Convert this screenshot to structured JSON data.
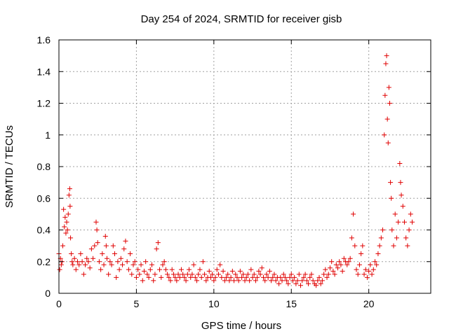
{
  "chart_data": {
    "type": "scatter",
    "title": "Day 254 of 2024, SRMTID for receiver gisb",
    "xlabel": "GPS time / hours",
    "ylabel": "SRMTID / TECUs",
    "xlim": [
      0,
      24
    ],
    "ylim": [
      0,
      1.6
    ],
    "x_ticks": [
      0,
      5,
      10,
      15,
      20
    ],
    "x_tick_labels": [
      "0",
      "5",
      "10",
      "15",
      "20"
    ],
    "y_ticks": [
      0,
      0.2,
      0.4,
      0.6,
      0.8,
      1.0,
      1.2,
      1.4,
      1.6
    ],
    "y_tick_labels": [
      "0",
      "0.2",
      "0.4",
      "0.6",
      "0.8",
      "1",
      "1.2",
      "1.4",
      "1.6"
    ],
    "grid": true,
    "marker": "plus",
    "color": "#e00000",
    "series": [
      {
        "name": "SRMTID",
        "points": [
          [
            0.0,
            0.25
          ],
          [
            0.05,
            0.15
          ],
          [
            0.1,
            0.22
          ],
          [
            0.15,
            0.18
          ],
          [
            0.2,
            0.2
          ],
          [
            0.25,
            0.3
          ],
          [
            0.3,
            0.53
          ],
          [
            0.35,
            0.42
          ],
          [
            0.4,
            0.48
          ],
          [
            0.45,
            0.38
          ],
          [
            0.5,
            0.45
          ],
          [
            0.55,
            0.4
          ],
          [
            0.6,
            0.5
          ],
          [
            0.65,
            0.62
          ],
          [
            0.7,
            0.66
          ],
          [
            0.72,
            0.55
          ],
          [
            0.75,
            0.35
          ],
          [
            0.8,
            0.25
          ],
          [
            0.85,
            0.2
          ],
          [
            0.9,
            0.18
          ],
          [
            1.0,
            0.22
          ],
          [
            1.1,
            0.15
          ],
          [
            1.2,
            0.2
          ],
          [
            1.3,
            0.18
          ],
          [
            1.4,
            0.25
          ],
          [
            1.5,
            0.2
          ],
          [
            1.6,
            0.12
          ],
          [
            1.7,
            0.18
          ],
          [
            1.8,
            0.22
          ],
          [
            1.9,
            0.2
          ],
          [
            2.0,
            0.16
          ],
          [
            2.1,
            0.28
          ],
          [
            2.2,
            0.22
          ],
          [
            2.3,
            0.3
          ],
          [
            2.4,
            0.45
          ],
          [
            2.45,
            0.4
          ],
          [
            2.5,
            0.32
          ],
          [
            2.6,
            0.2
          ],
          [
            2.7,
            0.15
          ],
          [
            2.8,
            0.25
          ],
          [
            2.9,
            0.18
          ],
          [
            3.0,
            0.36
          ],
          [
            3.05,
            0.3
          ],
          [
            3.1,
            0.22
          ],
          [
            3.2,
            0.12
          ],
          [
            3.3,
            0.2
          ],
          [
            3.4,
            0.18
          ],
          [
            3.5,
            0.3
          ],
          [
            3.6,
            0.25
          ],
          [
            3.7,
            0.1
          ],
          [
            3.8,
            0.2
          ],
          [
            3.9,
            0.15
          ],
          [
            4.0,
            0.22
          ],
          [
            4.1,
            0.18
          ],
          [
            4.2,
            0.28
          ],
          [
            4.3,
            0.33
          ],
          [
            4.4,
            0.2
          ],
          [
            4.5,
            0.15
          ],
          [
            4.6,
            0.25
          ],
          [
            4.7,
            0.12
          ],
          [
            4.8,
            0.18
          ],
          [
            4.9,
            0.2
          ],
          [
            5.0,
            0.1
          ],
          [
            5.1,
            0.15
          ],
          [
            5.2,
            0.12
          ],
          [
            5.3,
            0.18
          ],
          [
            5.4,
            0.08
          ],
          [
            5.5,
            0.14
          ],
          [
            5.6,
            0.2
          ],
          [
            5.7,
            0.12
          ],
          [
            5.8,
            0.1
          ],
          [
            5.9,
            0.15
          ],
          [
            6.0,
            0.18
          ],
          [
            6.1,
            0.08
          ],
          [
            6.2,
            0.12
          ],
          [
            6.3,
            0.28
          ],
          [
            6.4,
            0.32
          ],
          [
            6.5,
            0.15
          ],
          [
            6.6,
            0.1
          ],
          [
            6.7,
            0.18
          ],
          [
            6.8,
            0.2
          ],
          [
            6.9,
            0.15
          ],
          [
            7.0,
            0.12
          ],
          [
            7.1,
            0.1
          ],
          [
            7.2,
            0.08
          ],
          [
            7.3,
            0.15
          ],
          [
            7.4,
            0.12
          ],
          [
            7.5,
            0.1
          ],
          [
            7.6,
            0.08
          ],
          [
            7.7,
            0.12
          ],
          [
            7.8,
            0.1
          ],
          [
            7.9,
            0.15
          ],
          [
            8.0,
            0.12
          ],
          [
            8.1,
            0.1
          ],
          [
            8.2,
            0.08
          ],
          [
            8.3,
            0.12
          ],
          [
            8.4,
            0.15
          ],
          [
            8.5,
            0.1
          ],
          [
            8.6,
            0.12
          ],
          [
            8.7,
            0.18
          ],
          [
            8.8,
            0.1
          ],
          [
            8.9,
            0.08
          ],
          [
            9.0,
            0.12
          ],
          [
            9.1,
            0.15
          ],
          [
            9.2,
            0.1
          ],
          [
            9.3,
            0.2
          ],
          [
            9.4,
            0.12
          ],
          [
            9.5,
            0.08
          ],
          [
            9.6,
            0.1
          ],
          [
            9.7,
            0.14
          ],
          [
            9.8,
            0.1
          ],
          [
            9.9,
            0.12
          ],
          [
            10.0,
            0.08
          ],
          [
            10.1,
            0.1
          ],
          [
            10.2,
            0.15
          ],
          [
            10.3,
            0.12
          ],
          [
            10.4,
            0.18
          ],
          [
            10.5,
            0.1
          ],
          [
            10.6,
            0.14
          ],
          [
            10.7,
            0.08
          ],
          [
            10.8,
            0.1
          ],
          [
            10.9,
            0.12
          ],
          [
            11.0,
            0.08
          ],
          [
            11.1,
            0.1
          ],
          [
            11.2,
            0.14
          ],
          [
            11.3,
            0.08
          ],
          [
            11.4,
            0.12
          ],
          [
            11.5,
            0.1
          ],
          [
            11.6,
            0.08
          ],
          [
            11.7,
            0.14
          ],
          [
            11.8,
            0.1
          ],
          [
            11.9,
            0.12
          ],
          [
            12.0,
            0.08
          ],
          [
            12.1,
            0.1
          ],
          [
            12.2,
            0.12
          ],
          [
            12.3,
            0.08
          ],
          [
            12.4,
            0.15
          ],
          [
            12.5,
            0.1
          ],
          [
            12.6,
            0.12
          ],
          [
            12.7,
            0.08
          ],
          [
            12.8,
            0.1
          ],
          [
            12.9,
            0.14
          ],
          [
            13.0,
            0.12
          ],
          [
            13.1,
            0.16
          ],
          [
            13.2,
            0.1
          ],
          [
            13.3,
            0.08
          ],
          [
            13.4,
            0.12
          ],
          [
            13.5,
            0.1
          ],
          [
            13.6,
            0.14
          ],
          [
            13.7,
            0.08
          ],
          [
            13.8,
            0.1
          ],
          [
            13.9,
            0.12
          ],
          [
            14.0,
            0.08
          ],
          [
            14.1,
            0.1
          ],
          [
            14.2,
            0.06
          ],
          [
            14.3,
            0.1
          ],
          [
            14.4,
            0.08
          ],
          [
            14.5,
            0.12
          ],
          [
            14.6,
            0.1
          ],
          [
            14.7,
            0.08
          ],
          [
            14.8,
            0.06
          ],
          [
            14.9,
            0.1
          ],
          [
            15.0,
            0.12
          ],
          [
            15.1,
            0.08
          ],
          [
            15.2,
            0.1
          ],
          [
            15.3,
            0.06
          ],
          [
            15.4,
            0.08
          ],
          [
            15.5,
            0.12
          ],
          [
            15.6,
            0.05
          ],
          [
            15.7,
            0.08
          ],
          [
            15.8,
            0.1
          ],
          [
            15.9,
            0.12
          ],
          [
            16.0,
            0.08
          ],
          [
            16.1,
            0.06
          ],
          [
            16.2,
            0.1
          ],
          [
            16.3,
            0.12
          ],
          [
            16.4,
            0.08
          ],
          [
            16.5,
            0.06
          ],
          [
            16.6,
            0.05
          ],
          [
            16.7,
            0.08
          ],
          [
            16.8,
            0.1
          ],
          [
            16.9,
            0.06
          ],
          [
            17.0,
            0.08
          ],
          [
            17.1,
            0.12
          ],
          [
            17.2,
            0.15
          ],
          [
            17.3,
            0.1
          ],
          [
            17.4,
            0.12
          ],
          [
            17.5,
            0.16
          ],
          [
            17.6,
            0.2
          ],
          [
            17.7,
            0.14
          ],
          [
            17.8,
            0.12
          ],
          [
            17.9,
            0.18
          ],
          [
            18.0,
            0.16
          ],
          [
            18.1,
            0.2
          ],
          [
            18.2,
            0.18
          ],
          [
            18.3,
            0.14
          ],
          [
            18.4,
            0.22
          ],
          [
            18.5,
            0.2
          ],
          [
            18.6,
            0.18
          ],
          [
            18.7,
            0.2
          ],
          [
            18.8,
            0.22
          ],
          [
            18.9,
            0.35
          ],
          [
            19.0,
            0.5
          ],
          [
            19.1,
            0.3
          ],
          [
            19.2,
            0.15
          ],
          [
            19.3,
            0.12
          ],
          [
            19.4,
            0.18
          ],
          [
            19.5,
            0.25
          ],
          [
            19.6,
            0.3
          ],
          [
            19.7,
            0.12
          ],
          [
            19.8,
            0.15
          ],
          [
            19.9,
            0.1
          ],
          [
            20.0,
            0.14
          ],
          [
            20.1,
            0.18
          ],
          [
            20.2,
            0.12
          ],
          [
            20.3,
            0.15
          ],
          [
            20.4,
            0.2
          ],
          [
            20.5,
            0.18
          ],
          [
            20.6,
            0.25
          ],
          [
            20.7,
            0.3
          ],
          [
            20.8,
            0.35
          ],
          [
            20.9,
            0.4
          ],
          [
            21.0,
            1.0
          ],
          [
            21.05,
            1.25
          ],
          [
            21.1,
            1.45
          ],
          [
            21.15,
            1.5
          ],
          [
            21.2,
            1.1
          ],
          [
            21.25,
            0.95
          ],
          [
            21.3,
            1.3
          ],
          [
            21.35,
            1.2
          ],
          [
            21.4,
            0.7
          ],
          [
            21.45,
            0.6
          ],
          [
            21.5,
            0.4
          ],
          [
            21.6,
            0.3
          ],
          [
            21.7,
            0.5
          ],
          [
            21.8,
            0.35
          ],
          [
            21.9,
            0.45
          ],
          [
            22.0,
            0.82
          ],
          [
            22.05,
            0.7
          ],
          [
            22.1,
            0.62
          ],
          [
            22.2,
            0.55
          ],
          [
            22.3,
            0.45
          ],
          [
            22.4,
            0.35
          ],
          [
            22.5,
            0.3
          ],
          [
            22.6,
            0.4
          ],
          [
            22.7,
            0.5
          ],
          [
            22.8,
            0.45
          ]
        ]
      }
    ]
  }
}
